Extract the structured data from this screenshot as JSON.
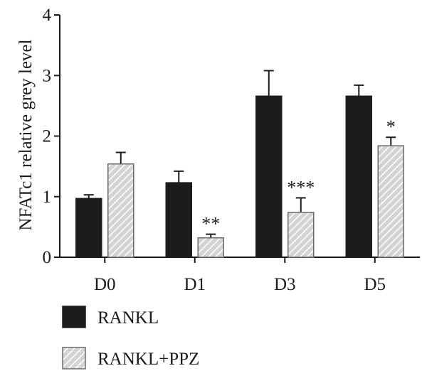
{
  "chart_data": {
    "type": "bar",
    "title": "",
    "xlabel": "",
    "ylabel": "NFATc1 relative grey level",
    "ylim": [
      0,
      4
    ],
    "yticks": [
      0,
      1,
      2,
      3,
      4
    ],
    "categories": [
      "D0",
      "D1",
      "D3",
      "D5"
    ],
    "grid": false,
    "legend_position": "bottom-left",
    "series": [
      {
        "name": "RANKL",
        "color": "#1c1c1c",
        "pattern": "solid",
        "values": [
          0.97,
          1.23,
          2.66,
          2.66
        ],
        "errors": [
          0.06,
          0.19,
          0.42,
          0.18
        ],
        "annotations": [
          "",
          "",
          "",
          ""
        ]
      },
      {
        "name": "RANKL+PPZ",
        "color": "#c9c9c9",
        "pattern": "diagonal-hatch",
        "values": [
          1.54,
          0.32,
          0.74,
          1.84
        ],
        "errors": [
          0.19,
          0.06,
          0.24,
          0.14
        ],
        "annotations": [
          "",
          "**",
          "***",
          "*"
        ]
      }
    ]
  }
}
